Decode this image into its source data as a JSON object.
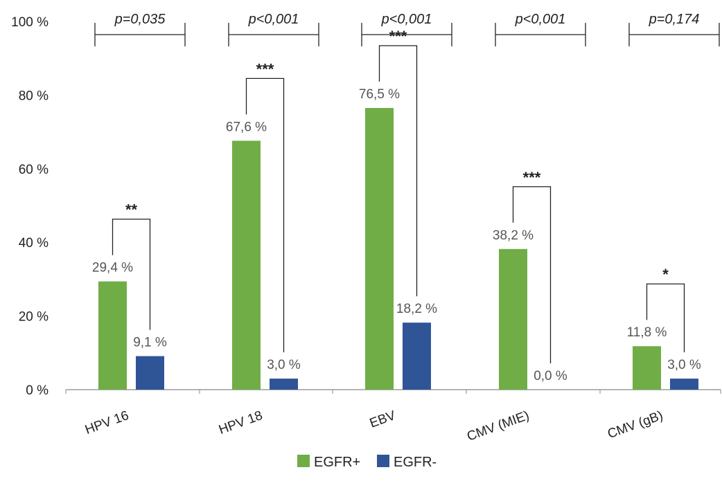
{
  "chart_data": {
    "type": "bar",
    "categories": [
      "HPV 16",
      "HPV 18",
      "EBV",
      "CMV (MIE)",
      "CMV (gB)"
    ],
    "series": [
      {
        "name": "EGFR+",
        "values": [
          29.4,
          67.6,
          76.5,
          38.2,
          11.8
        ],
        "labels": [
          "29,4 %",
          "67,6 %",
          "76,5 %",
          "38,2 %",
          "11,8 %"
        ],
        "color": "#70ad47"
      },
      {
        "name": "EGFR-",
        "values": [
          9.1,
          3.0,
          18.2,
          0.0,
          3.0
        ],
        "labels": [
          "9,1 %",
          "3,0 %",
          "18,2 %",
          "0,0 %",
          "3,0 %"
        ],
        "color": "#2f5597"
      }
    ],
    "ylim": [
      0,
      100
    ],
    "yticks": [
      "0 %",
      "20 %",
      "40 %",
      "60 %",
      "80 %",
      "100 %"
    ],
    "ytick_values": [
      0,
      20,
      40,
      60,
      80,
      100
    ],
    "significance": [
      "**",
      "***",
      "***",
      "***",
      "*"
    ],
    "p_values": [
      "p=0,035",
      "p<0,001",
      "p<0,001",
      "p<0,001",
      "p=0,174"
    ],
    "legend_position": "bottom-center",
    "grid": false
  }
}
